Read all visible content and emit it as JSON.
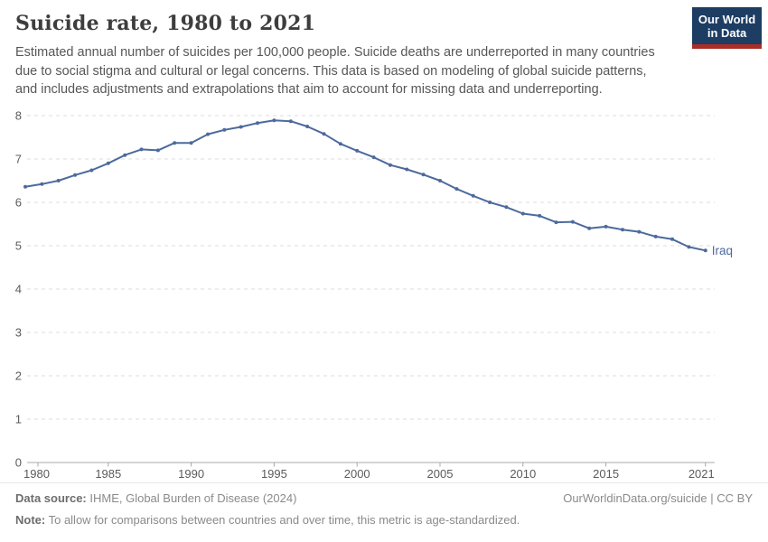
{
  "header": {
    "title": "Suicide rate, 1980 to 2021",
    "subtitle_lines": [
      "Estimated annual number of suicides per 100,000 people. Suicide deaths are underreported in many countries",
      "due to social stigma and cultural or legal concerns. This data is based on modeling of global suicide patterns,",
      "and includes adjustments and extrapolations that aim to account for missing data and underreporting."
    ]
  },
  "logo": {
    "line1": "Our World",
    "line2": "in Data",
    "bg_color": "#1d3d63",
    "accent_color": "#aa2e26"
  },
  "chart_data": {
    "type": "line",
    "title": "Suicide rate, 1980 to 2021",
    "xlabel": "",
    "ylabel": "",
    "xlim": [
      1980,
      2021
    ],
    "ylim": [
      0,
      8
    ],
    "grid": "horizontal-dashed",
    "legend_position": "end-of-line-label",
    "xticks": [
      1980,
      1985,
      1990,
      1995,
      2000,
      2005,
      2010,
      2015,
      2021
    ],
    "yticks": [
      0,
      1,
      2,
      3,
      4,
      5,
      6,
      7,
      8
    ],
    "series": [
      {
        "name": "Iraq",
        "color": "#4c6a9c",
        "x": [
          1980,
          1981,
          1982,
          1983,
          1984,
          1985,
          1986,
          1987,
          1988,
          1989,
          1990,
          1991,
          1992,
          1993,
          1994,
          1995,
          1996,
          1997,
          1998,
          1999,
          2000,
          2001,
          2002,
          2003,
          2004,
          2005,
          2006,
          2007,
          2008,
          2009,
          2010,
          2011,
          2012,
          2013,
          2014,
          2015,
          2016,
          2017,
          2018,
          2019,
          2020,
          2021
        ],
        "values": [
          6.36,
          6.42,
          6.5,
          6.63,
          6.74,
          6.9,
          7.09,
          7.22,
          7.2,
          7.37,
          7.37,
          7.57,
          7.67,
          7.74,
          7.83,
          7.89,
          7.87,
          7.75,
          7.58,
          7.35,
          7.19,
          7.04,
          6.86,
          6.76,
          6.64,
          6.5,
          6.31,
          6.15,
          6.0,
          5.89,
          5.74,
          5.69,
          5.54,
          5.55,
          5.4,
          5.44,
          5.37,
          5.32,
          5.21,
          5.15,
          4.97,
          4.89
        ]
      }
    ],
    "colors": {
      "grid": "#dcdcdc",
      "axis": "#a8a8a8",
      "tick_text": "#5b5b5b"
    }
  },
  "footer": {
    "source_label": "Data source:",
    "source_text": " IHME, Global Burden of Disease (2024)",
    "link_text": "OurWorldinData.org/suicide | CC BY",
    "note_label": "Note:",
    "note_text": " To allow for comparisons between countries and over time, this metric is age-standardized."
  }
}
